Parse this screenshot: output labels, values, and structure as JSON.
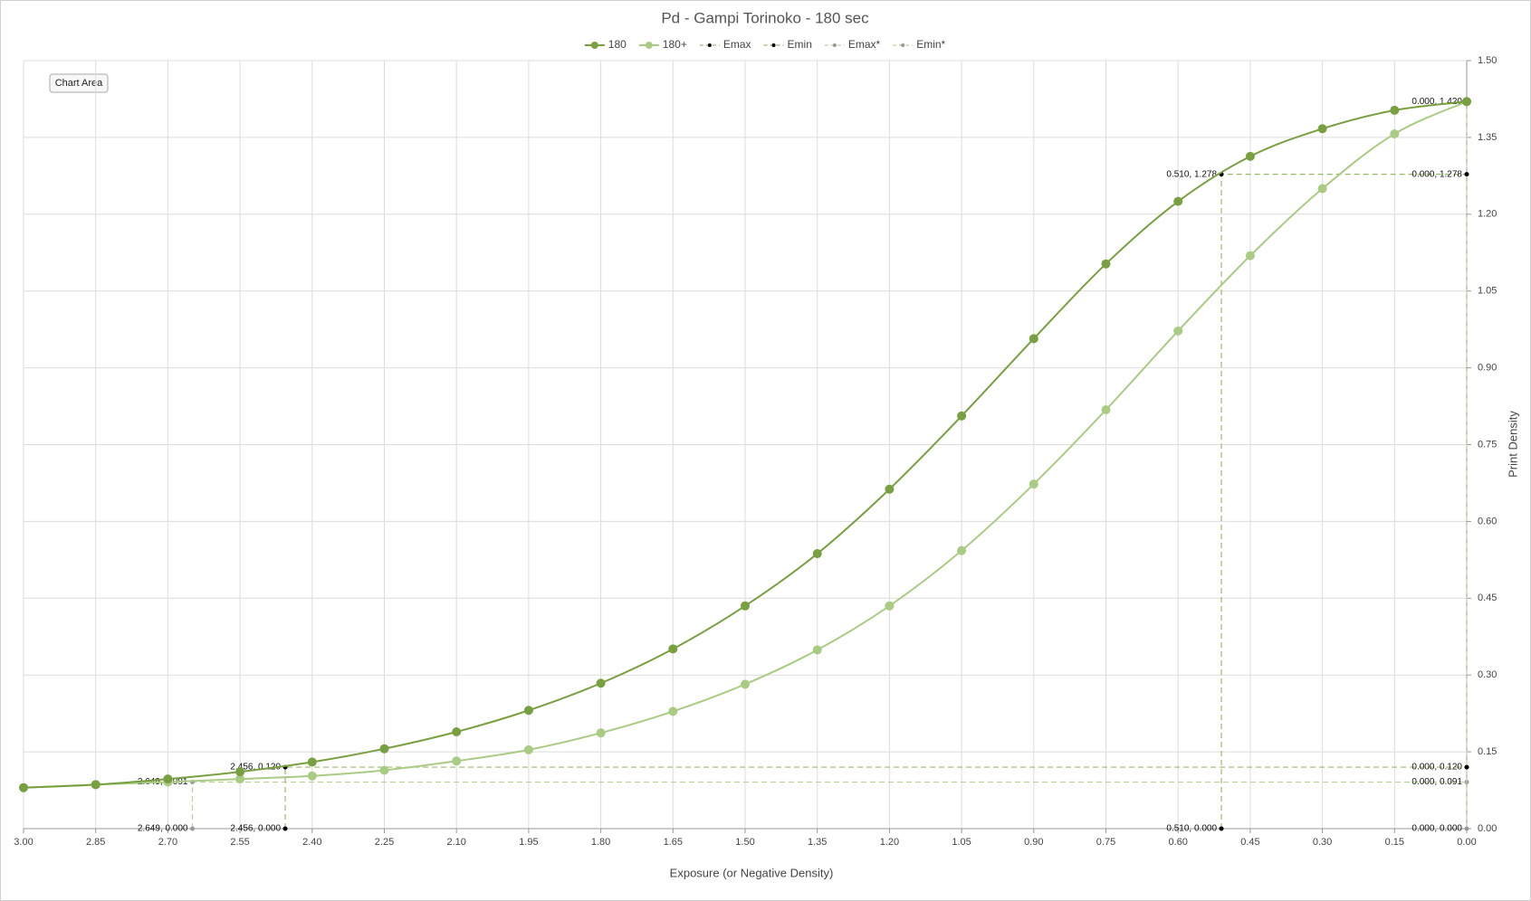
{
  "chart_data": {
    "type": "scatter",
    "title": "Pd - Gampi Torinoko - 180 sec",
    "x_label": "Exposure (or Negative Density)",
    "y_label": "Print Density",
    "tooltip": "Chart Area",
    "xlim": [
      3.0,
      0.0
    ],
    "ylim": [
      0.0,
      1.5
    ],
    "xticks": [
      {
        "value": 3.0,
        "label": "3.00"
      },
      2.85,
      {
        "value": 2.7,
        "label": "2.70"
      },
      2.55,
      {
        "value": 2.4,
        "label": "2.40"
      },
      2.25,
      {
        "value": 2.1,
        "label": "2.10"
      },
      1.95,
      {
        "value": 1.8,
        "label": "1.80"
      },
      1.65,
      {
        "value": 1.5,
        "label": "1.50"
      },
      1.35,
      {
        "value": 1.2,
        "label": "1.20"
      },
      1.05,
      {
        "value": 0.9,
        "label": "0.90"
      },
      0.75,
      {
        "value": 0.6,
        "label": "0.60"
      },
      0.45,
      {
        "value": 0.3,
        "label": "0.30"
      },
      0.15,
      {
        "value": 0.0,
        "label": "0.00"
      }
    ],
    "yticks": [
      {
        "value": 0.0,
        "label": "0.00"
      },
      0.15,
      {
        "value": 0.3,
        "label": "0.30"
      },
      0.45,
      {
        "value": 0.6,
        "label": "0.60"
      },
      0.75,
      {
        "value": 0.9,
        "label": "0.90"
      },
      1.05,
      {
        "value": 1.2,
        "label": "1.20"
      },
      1.35,
      {
        "value": 1.5,
        "label": "1.50"
      }
    ],
    "grid": true,
    "legend": "top",
    "series": [
      {
        "name": "180",
        "color": "#78a040",
        "smooth": true,
        "marker_color": "#78a040",
        "marker_size": 5,
        "x": [
          3.0,
          2.85,
          2.7,
          2.55,
          2.4,
          2.25,
          2.1,
          1.95,
          1.8,
          1.65,
          1.5,
          1.35,
          1.2,
          1.05,
          0.9,
          0.75,
          0.6,
          0.45,
          0.3,
          0.15,
          0.0
        ],
        "values": [
          0.08,
          0.086,
          0.097,
          0.111,
          0.13,
          0.156,
          0.189,
          0.231,
          0.284,
          0.351,
          0.435,
          0.537,
          0.663,
          0.806,
          0.957,
          1.103,
          1.225,
          1.313,
          1.367,
          1.403,
          1.42
        ]
      },
      {
        "name": "180+",
        "color": "#aacb84",
        "smooth": true,
        "marker_color": "#aacb84",
        "marker_size": 5,
        "x": [
          3.0,
          2.85,
          2.7,
          2.55,
          2.4,
          2.25,
          2.1,
          1.95,
          1.8,
          1.65,
          1.5,
          1.35,
          1.2,
          1.05,
          0.9,
          0.75,
          0.6,
          0.45,
          0.3,
          0.15,
          0.0
        ],
        "values": [
          0.08,
          0.086,
          0.091,
          0.097,
          0.103,
          0.114,
          0.132,
          0.154,
          0.187,
          0.229,
          0.282,
          0.349,
          0.435,
          0.543,
          0.673,
          0.818,
          0.972,
          1.119,
          1.25,
          1.357,
          1.42
        ]
      },
      {
        "name": "Emax",
        "color": "#9cba6c",
        "dashed": true,
        "marker_color": "#000000",
        "marker_size": 2.5,
        "x": [
          0.51,
          0.51,
          0.0
        ],
        "values": [
          0.0,
          1.278,
          1.278
        ],
        "point_labels": [
          "0.510, 0.000",
          "0.510, 1.278",
          "0.000, 1.278"
        ]
      },
      {
        "name": "Emin",
        "color": "#9cba6c",
        "dashed": true,
        "marker_color": "#000000",
        "marker_size": 2.5,
        "x": [
          2.456,
          2.456,
          0.0
        ],
        "values": [
          0.0,
          0.12,
          0.12
        ],
        "point_labels": [
          "2.456, 0.000",
          "2.456, 0.120",
          "0.000, 0.120"
        ]
      },
      {
        "name": "Emax*",
        "color": "#b9d39a",
        "dashed": true,
        "marker_color": "#999999",
        "marker_size": 2.5,
        "x": [
          0.0,
          0.0
        ],
        "values": [
          0.0,
          1.42
        ],
        "point_labels": [
          "0.000, 0.000",
          "0.000, 1.420"
        ]
      },
      {
        "name": "Emin*",
        "color": "#b9d39a",
        "dashed": true,
        "marker_color": "#999999",
        "marker_size": 2.5,
        "x": [
          2.649,
          2.649,
          0.0
        ],
        "values": [
          0.0,
          0.091,
          0.091
        ],
        "point_labels": [
          "2.649, 0.000",
          "2.649, 0.091",
          "0.000, 0.091"
        ]
      }
    ]
  }
}
